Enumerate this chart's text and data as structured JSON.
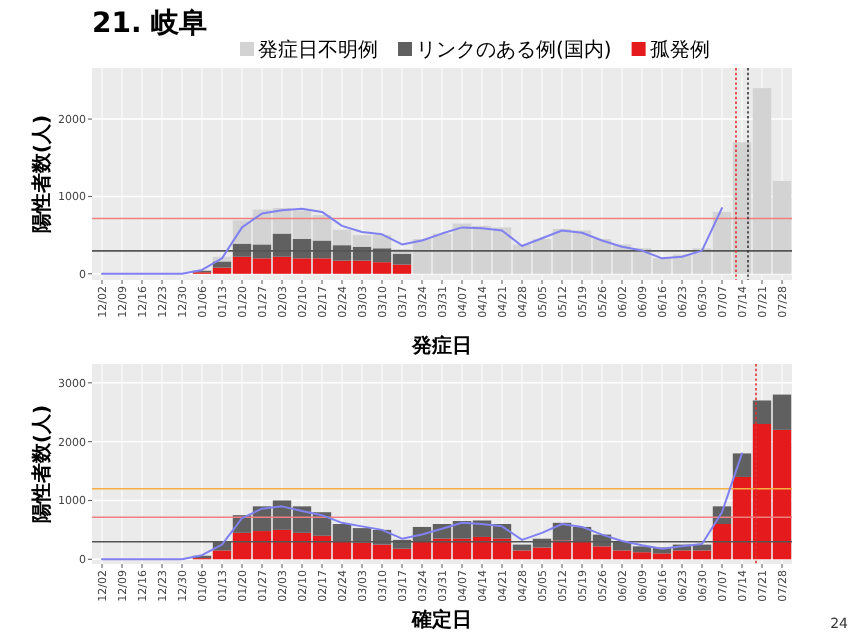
{
  "chart_data": [
    {
      "type": "bar",
      "title": "21. 岐阜",
      "xlabel": "発症日",
      "ylabel": "陽性者数(人)",
      "stacked": true,
      "grid": true,
      "legend": "top",
      "categories": [
        "12/02",
        "12/09",
        "12/16",
        "12/23",
        "12/30",
        "01/06",
        "01/13",
        "01/20",
        "01/27",
        "02/03",
        "02/10",
        "02/17",
        "02/24",
        "03/03",
        "03/10",
        "03/17",
        "03/24",
        "03/31",
        "04/07",
        "04/14",
        "04/21",
        "04/28",
        "05/05",
        "05/12",
        "05/19",
        "05/26",
        "06/02",
        "06/09",
        "06/16",
        "06/23",
        "06/30",
        "07/07",
        "07/14",
        "07/21",
        "07/28"
      ],
      "ylim": [
        -80,
        2660
      ],
      "yticks": [
        0,
        1000,
        2000
      ],
      "ref_lines": [
        {
          "axis": "y",
          "value": 714,
          "color": "#f08080",
          "line_style": "solid"
        },
        {
          "axis": "y",
          "value": 297,
          "color": "#555555",
          "line_style": "solid"
        },
        {
          "axis": "x",
          "value": "07/14",
          "color": "#e03030",
          "line_style": "dotted"
        },
        {
          "axis": "x",
          "value": "07/14",
          "color": "#333333",
          "line_style": "dotted"
        }
      ],
      "series": [
        {
          "name": "孤発例",
          "color": "#e41a1c",
          "values": [
            0,
            0,
            0,
            0,
            0,
            20,
            80,
            220,
            200,
            220,
            200,
            200,
            170,
            170,
            150,
            120,
            null,
            null,
            null,
            null,
            null,
            null,
            null,
            null,
            null,
            null,
            null,
            null,
            null,
            null,
            null,
            null,
            null,
            null,
            null
          ]
        },
        {
          "name": "リンクのある例(国内)",
          "color": "#606060",
          "values": [
            0,
            0,
            0,
            0,
            0,
            20,
            80,
            170,
            180,
            300,
            250,
            230,
            200,
            180,
            180,
            140,
            null,
            null,
            null,
            null,
            null,
            null,
            null,
            null,
            null,
            null,
            null,
            null,
            null,
            null,
            null,
            null,
            null,
            null,
            null
          ]
        },
        {
          "name": "発症日不明例",
          "color": "#d3d3d3",
          "values": [
            0,
            0,
            0,
            0,
            0,
            null,
            60,
            300,
            450,
            330,
            370,
            330,
            200,
            150,
            170,
            60,
            450,
            520,
            650,
            620,
            600,
            380,
            450,
            580,
            560,
            450,
            380,
            330,
            200,
            250,
            330,
            800,
            1700,
            2400,
            1200
          ]
        },
        {
          "type": "line",
          "color": "#8080f0",
          "values": [
            0,
            0,
            0,
            0,
            0,
            50,
            200,
            600,
            780,
            820,
            840,
            800,
            620,
            540,
            510,
            380,
            430,
            520,
            600,
            590,
            560,
            360,
            460,
            560,
            530,
            430,
            350,
            300,
            200,
            220,
            300,
            850,
            null,
            null,
            null
          ]
        }
      ]
    },
    {
      "type": "bar",
      "xlabel": "確定日",
      "ylabel": "陽性者数(人)",
      "stacked": true,
      "grid": true,
      "categories": [
        "12/02",
        "12/09",
        "12/16",
        "12/23",
        "12/30",
        "01/06",
        "01/13",
        "01/20",
        "01/27",
        "02/03",
        "02/10",
        "02/17",
        "02/24",
        "03/03",
        "03/10",
        "03/17",
        "03/24",
        "03/31",
        "04/07",
        "04/14",
        "04/21",
        "04/28",
        "05/05",
        "05/12",
        "05/19",
        "05/26",
        "06/02",
        "06/09",
        "06/16",
        "06/23",
        "06/30",
        "07/07",
        "07/14",
        "07/21",
        "07/28"
      ],
      "ylim": [
        -80,
        3320
      ],
      "yticks": [
        0,
        1000,
        2000,
        3000
      ],
      "ref_lines": [
        {
          "axis": "y",
          "value": 1200,
          "color": "#f5b041",
          "line_style": "solid"
        },
        {
          "axis": "y",
          "value": 714,
          "color": "#f08080",
          "line_style": "solid"
        },
        {
          "axis": "y",
          "value": 297,
          "color": "#555555",
          "line_style": "solid"
        },
        {
          "axis": "x",
          "value": "07/21",
          "color": "#e03030",
          "line_style": "dotted"
        }
      ],
      "annotations": [
        "24"
      ],
      "series": [
        {
          "color": "#e41a1c",
          "values": [
            0,
            0,
            0,
            0,
            0,
            20,
            150,
            450,
            480,
            500,
            450,
            400,
            300,
            280,
            250,
            180,
            300,
            350,
            350,
            380,
            350,
            150,
            200,
            320,
            300,
            220,
            150,
            120,
            100,
            150,
            150,
            600,
            1400,
            2300,
            2200
          ]
        },
        {
          "color": "#606060",
          "values": [
            0,
            0,
            0,
            0,
            0,
            40,
            150,
            300,
            420,
            500,
            450,
            400,
            300,
            250,
            250,
            150,
            250,
            250,
            300,
            280,
            250,
            100,
            150,
            300,
            250,
            200,
            150,
            100,
            100,
            100,
            100,
            300,
            400,
            400,
            600
          ]
        },
        {
          "type": "line",
          "color": "#8080f0",
          "values": [
            0,
            0,
            0,
            0,
            0,
            70,
            250,
            700,
            860,
            900,
            820,
            750,
            620,
            560,
            500,
            350,
            420,
            520,
            620,
            600,
            560,
            330,
            450,
            600,
            550,
            420,
            310,
            240,
            180,
            220,
            260,
            800,
            1800,
            null,
            null
          ]
        }
      ]
    }
  ]
}
